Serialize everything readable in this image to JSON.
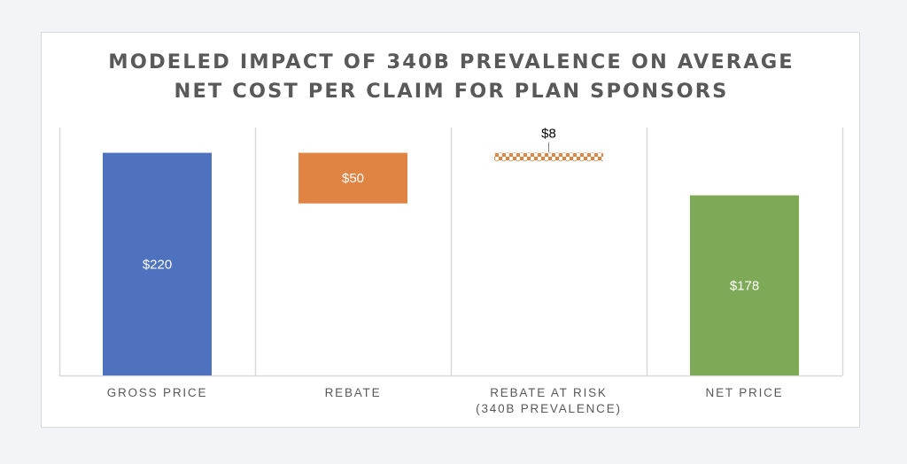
{
  "chart_data": {
    "type": "bar",
    "subtype": "waterfall",
    "title_lines": [
      "MODELED IMPACT OF 340B PREVALENCE ON AVERAGE",
      "NET COST PER CLAIM FOR PLAN SPONSORS"
    ],
    "categories": [
      [
        "GROSS PRICE"
      ],
      [
        "REBATE"
      ],
      [
        "REBATE AT RISK",
        "(340B PREVALENCE)"
      ],
      [
        "NET PRICE"
      ]
    ],
    "bars": [
      {
        "label": "$220",
        "value": 220,
        "base": 0,
        "kind": "total",
        "color": "#4e72bd",
        "label_color": "#ffffff"
      },
      {
        "label": "$50",
        "value": 50,
        "base": 170,
        "kind": "decrease",
        "color": "#e08443",
        "label_color": "#ffffff"
      },
      {
        "label": "$8",
        "value": 8,
        "base": 212,
        "kind": "at-risk",
        "color": "#e08443",
        "label_color": "#000000"
      },
      {
        "label": "$178",
        "value": 178,
        "base": 0,
        "kind": "total",
        "color": "#7ea957",
        "label_color": "#ffffff"
      }
    ],
    "ylim": [
      0,
      245
    ],
    "grid": false,
    "legend": "none"
  }
}
